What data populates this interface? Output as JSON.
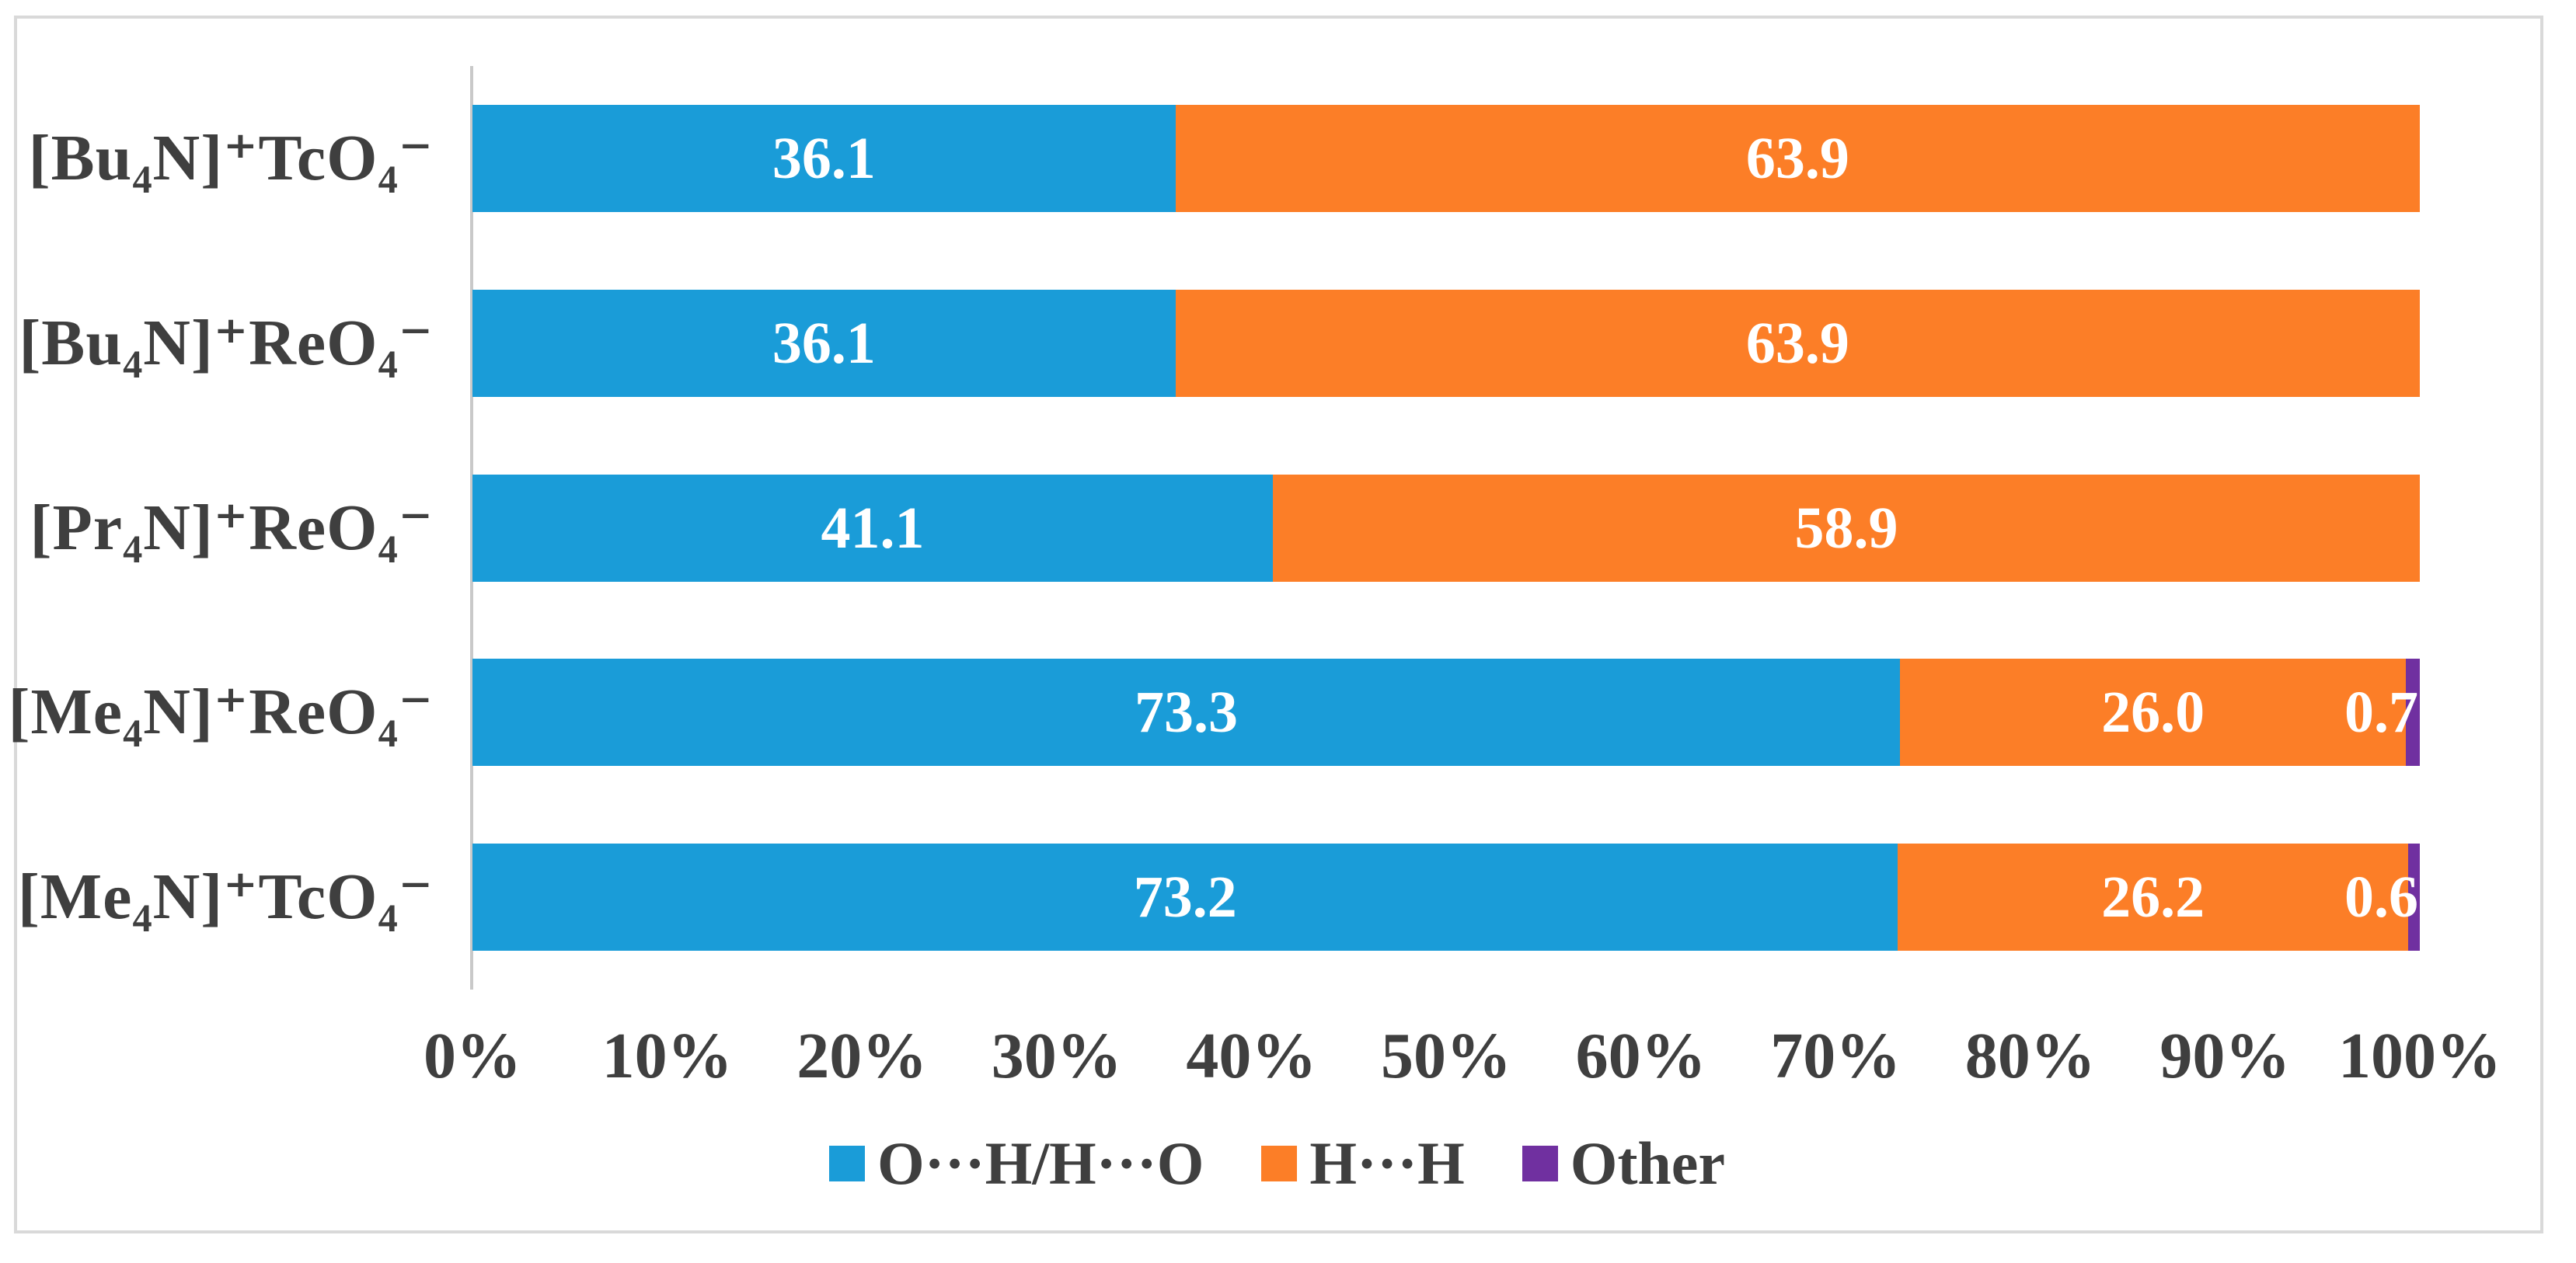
{
  "palette": {
    "background": "#FFFFFF",
    "figure_border": "#D9D9D9",
    "axis_line": "#C9C9C9",
    "axis_text": "#3F3F3F",
    "value_label_text": "#FFFFFF"
  },
  "chart_data": {
    "type": "bar",
    "orientation": "horizontal_stacked",
    "title": "",
    "xlabel": "",
    "ylabel": "",
    "xlim": [
      0,
      100
    ],
    "grid": false,
    "legend_position": "bottom",
    "categories": [
      "[Bu₄N]⁺TcO₄⁻",
      "[Bu₄N]⁺ReO₄⁻",
      "[Pr₄N]⁺ReO₄⁻",
      "[Me₄N]⁺ReO₄⁻",
      "[Me₄N]⁺TcO₄⁻"
    ],
    "series": [
      {
        "name": "O···H/H···O",
        "color": "#1A9CD8",
        "values": [
          36.1,
          36.1,
          41.1,
          73.3,
          73.2
        ]
      },
      {
        "name": "H···H",
        "color": "#FC7E27",
        "values": [
          63.9,
          63.9,
          58.9,
          26.0,
          26.2
        ]
      },
      {
        "name": "Other",
        "color": "#7030A0",
        "values": [
          0,
          0,
          0,
          0.7,
          0.6
        ]
      }
    ],
    "x_ticks": [
      "0%",
      "10%",
      "20%",
      "30%",
      "40%",
      "50%",
      "60%",
      "70%",
      "80%",
      "90%",
      "100%"
    ],
    "value_labels_shown": [
      [
        "36.1",
        "63.9",
        ""
      ],
      [
        "36.1",
        "63.9",
        ""
      ],
      [
        "41.1",
        "58.9",
        ""
      ],
      [
        "73.3",
        "26.0",
        "0.7"
      ],
      [
        "73.2",
        "26.2",
        "0.6"
      ]
    ]
  }
}
